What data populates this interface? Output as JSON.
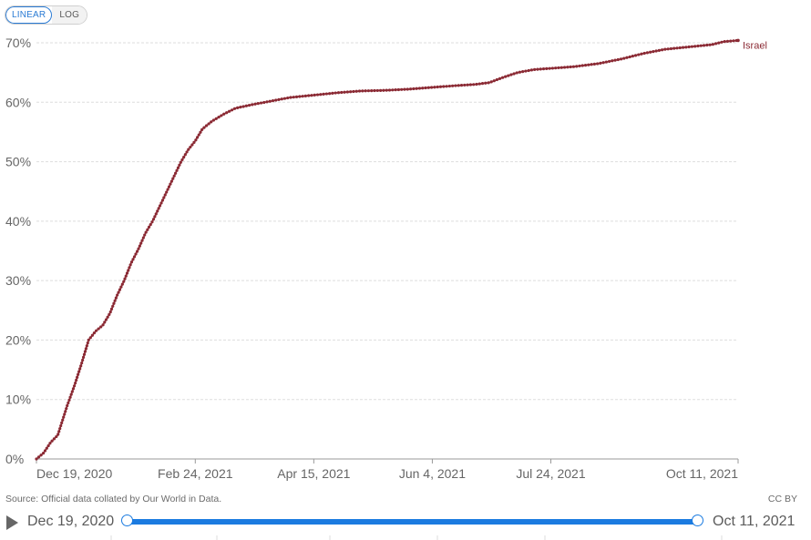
{
  "scale_toggle": {
    "linear": "LINEAR",
    "log": "LOG",
    "active": "linear"
  },
  "chart_data": {
    "type": "line",
    "title": "",
    "xlabel": "",
    "ylabel": "",
    "ylim": [
      0,
      70
    ],
    "y_tick_values": [
      0,
      10,
      20,
      30,
      40,
      50,
      60,
      70
    ],
    "y_tick_labels": [
      "0%",
      "10%",
      "20%",
      "30%",
      "40%",
      "50%",
      "60%",
      "70%"
    ],
    "x_tick_labels": [
      "Dec 19, 2020",
      "Feb 24, 2021",
      "Apr 15, 2021",
      "Jun 4, 2021",
      "Jul 24, 2021",
      "Oct 11, 2021"
    ],
    "x_tick_dates": [
      "2020-12-19",
      "2021-02-24",
      "2021-04-15",
      "2021-06-04",
      "2021-07-24",
      "2021-10-11"
    ],
    "xlim": [
      "2020-12-19",
      "2021-10-11"
    ],
    "grid": true,
    "series": [
      {
        "name": "Israel",
        "color": "#8b2a34",
        "points": [
          [
            "2020-12-19",
            0.0
          ],
          [
            "2020-12-22",
            1.0
          ],
          [
            "2020-12-25",
            2.8
          ],
          [
            "2020-12-28",
            4.0
          ],
          [
            "2021-01-01",
            9.0
          ],
          [
            "2021-01-04",
            12.3
          ],
          [
            "2021-01-07",
            16.0
          ],
          [
            "2021-01-10",
            20.0
          ],
          [
            "2021-01-13",
            21.5
          ],
          [
            "2021-01-16",
            22.5
          ],
          [
            "2021-01-19",
            24.5
          ],
          [
            "2021-01-22",
            27.5
          ],
          [
            "2021-01-25",
            30.0
          ],
          [
            "2021-01-28",
            33.0
          ],
          [
            "2021-01-31",
            35.3
          ],
          [
            "2021-02-03",
            38.0
          ],
          [
            "2021-02-06",
            40.0
          ],
          [
            "2021-02-09",
            42.5
          ],
          [
            "2021-02-12",
            45.0
          ],
          [
            "2021-02-15",
            47.5
          ],
          [
            "2021-02-18",
            50.0
          ],
          [
            "2021-02-21",
            52.0
          ],
          [
            "2021-02-24",
            53.5
          ],
          [
            "2021-02-27",
            55.5
          ],
          [
            "2021-03-03",
            56.8
          ],
          [
            "2021-03-08",
            58.0
          ],
          [
            "2021-03-13",
            59.0
          ],
          [
            "2021-03-20",
            59.6
          ],
          [
            "2021-03-28",
            60.2
          ],
          [
            "2021-04-05",
            60.8
          ],
          [
            "2021-04-15",
            61.2
          ],
          [
            "2021-04-25",
            61.6
          ],
          [
            "2021-05-05",
            61.9
          ],
          [
            "2021-05-15",
            62.0
          ],
          [
            "2021-05-25",
            62.2
          ],
          [
            "2021-06-04",
            62.5
          ],
          [
            "2021-06-14",
            62.8
          ],
          [
            "2021-06-22",
            63.0
          ],
          [
            "2021-06-28",
            63.3
          ],
          [
            "2021-07-04",
            64.2
          ],
          [
            "2021-07-10",
            65.0
          ],
          [
            "2021-07-17",
            65.5
          ],
          [
            "2021-07-24",
            65.7
          ],
          [
            "2021-08-03",
            66.0
          ],
          [
            "2021-08-13",
            66.5
          ],
          [
            "2021-08-23",
            67.3
          ],
          [
            "2021-09-01",
            68.2
          ],
          [
            "2021-09-10",
            68.9
          ],
          [
            "2021-09-20",
            69.3
          ],
          [
            "2021-09-30",
            69.7
          ],
          [
            "2021-10-05",
            70.2
          ],
          [
            "2021-10-11",
            70.4
          ]
        ]
      }
    ]
  },
  "footer": {
    "source": "Source: Official data collated by Our World in Data.",
    "license": "CC BY"
  },
  "timeline": {
    "start_label": "Dec 19, 2020",
    "end_label": "Oct 11, 2021"
  }
}
